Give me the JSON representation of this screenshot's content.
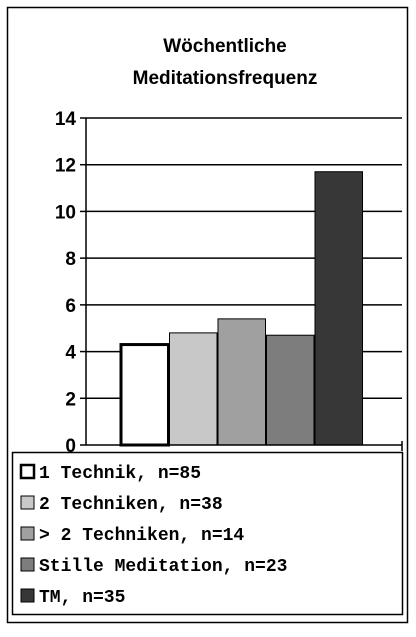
{
  "chart_data": {
    "type": "bar",
    "title_lines": [
      "Wöchentliche",
      "Meditationsfrequenz"
    ],
    "ylim": [
      0,
      14
    ],
    "y_ticks": [
      "0",
      "2",
      "4",
      "6",
      "8",
      "10",
      "12",
      "14"
    ],
    "grid": true,
    "legend_position": "bottom",
    "series": [
      {
        "name": "1 Technik, n=85",
        "value": 4.3,
        "color": "#ffffff"
      },
      {
        "name": "2 Techniken, n=38",
        "value": 4.8,
        "color": "#c8c8c8"
      },
      {
        "name": "> 2 Techniken, n=14",
        "value": 5.4,
        "color": "#a0a0a0"
      },
      {
        "name": "Stille Meditation, n=23",
        "value": 4.7,
        "color": "#7d7d7d"
      },
      {
        "name": "TM, n=35",
        "value": 11.7,
        "color": "#373737"
      }
    ]
  }
}
